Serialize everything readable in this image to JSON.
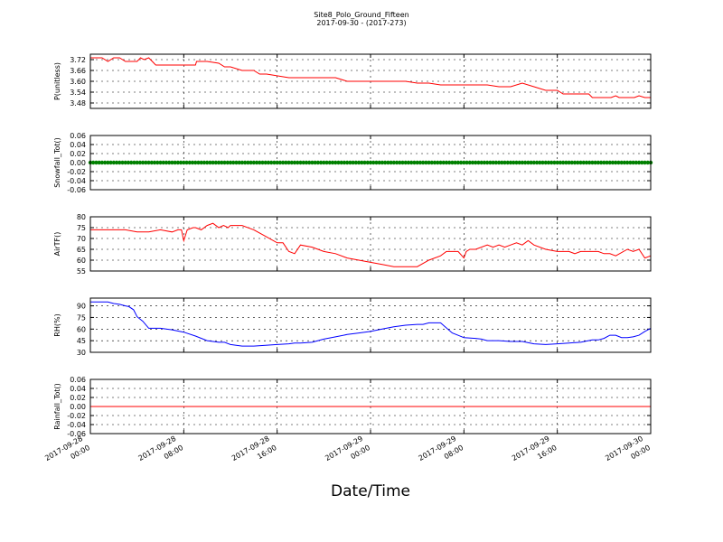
{
  "figure": {
    "title": "Site8_Polo_Ground_Fifteen",
    "subtitle": "2017-09-30 - (2017-273)",
    "xlabel": "Date/Time"
  },
  "chart_data": [
    {
      "type": "line",
      "ylabel": "P(unitless)",
      "color": "#ff0000",
      "yticks": [
        "3.72",
        "3.66",
        "3.60",
        "3.54",
        "3.48"
      ],
      "ytick_values": [
        3.72,
        3.66,
        3.6,
        3.54,
        3.48
      ],
      "ylim": [
        3.45,
        3.75
      ],
      "xlim": [
        0,
        48
      ],
      "grid": true,
      "x": [
        0,
        1,
        1.5,
        2,
        2.5,
        3,
        3.5,
        4,
        4.3,
        4.6,
        5,
        5.3,
        5.6,
        6,
        8,
        9,
        9.1,
        10,
        11,
        11.5,
        12,
        13,
        13.5,
        14,
        14.5,
        15,
        15.1,
        17,
        17.5,
        18,
        18.5,
        18.9,
        19,
        21,
        22,
        24,
        25,
        27,
        28,
        29,
        30,
        30.8,
        31,
        31.5,
        32,
        32.3,
        33,
        34,
        35,
        35.5,
        36,
        37,
        38,
        39,
        40,
        40.5,
        41,
        42,
        42.7,
        43,
        43.2,
        43.5,
        43.8,
        44,
        44.3,
        44.6,
        45,
        45.3,
        45.6,
        46,
        46.3,
        46.6,
        47,
        47.5,
        48
      ],
      "y": [
        3.73,
        3.73,
        3.71,
        3.73,
        3.73,
        3.71,
        3.71,
        3.71,
        3.73,
        3.72,
        3.73,
        3.71,
        3.69,
        3.69,
        3.69,
        3.69,
        3.71,
        3.71,
        3.7,
        3.68,
        3.68,
        3.66,
        3.66,
        3.66,
        3.64,
        3.64,
        3.64,
        3.62,
        3.62,
        3.62,
        3.62,
        3.62,
        3.62,
        3.62,
        3.6,
        3.6,
        3.6,
        3.6,
        3.59,
        3.59,
        3.58,
        3.58,
        3.58,
        3.58,
        3.58,
        3.58,
        3.58,
        3.58,
        3.57,
        3.57,
        3.57,
        3.59,
        3.57,
        3.55,
        3.55,
        3.53,
        3.53,
        3.53,
        3.53,
        3.51,
        3.51,
        3.51,
        3.51,
        3.51,
        3.51,
        3.51,
        3.52,
        3.51,
        3.51,
        3.51,
        3.51,
        3.51,
        3.52,
        3.51,
        3.51
      ]
    },
    {
      "type": "scatter",
      "ylabel": "Snowfall_Tot()",
      "color": "#008000",
      "yticks": [
        "0.06",
        "0.04",
        "0.02",
        "0.00",
        "-0.02",
        "-0.04",
        "-0.06"
      ],
      "ytick_values": [
        0.06,
        0.04,
        0.02,
        0.0,
        -0.02,
        -0.04,
        -0.06
      ],
      "ylim": [
        -0.06,
        0.06
      ],
      "xlim": [
        0,
        48
      ],
      "grid": true,
      "constant_value": 0.0,
      "x_start": 0,
      "x_end": 48,
      "marker_step": 0.25
    },
    {
      "type": "line",
      "ylabel": "AirTF()",
      "color": "#ff0000",
      "yticks": [
        "80",
        "75",
        "70",
        "65",
        "60",
        "55"
      ],
      "ytick_values": [
        80,
        75,
        70,
        65,
        60,
        55
      ],
      "ylim": [
        55,
        80
      ],
      "xlim": [
        0,
        48
      ],
      "grid": true,
      "x": [
        0,
        1,
        2,
        3,
        4,
        5,
        6,
        7,
        7.5,
        7.8,
        8,
        8.3,
        8.8,
        9,
        9.5,
        10,
        10.5,
        11,
        11.4,
        11.8,
        12,
        13,
        14,
        15,
        16,
        16.5,
        17,
        17.5,
        18,
        19,
        20,
        21,
        22,
        23,
        24,
        25,
        26,
        27,
        28,
        29,
        30,
        30.5,
        31,
        31.5,
        32,
        32.2,
        32.5,
        33,
        34,
        34.5,
        35,
        35.5,
        36,
        36.5,
        37,
        37.5,
        38,
        39,
        40,
        41,
        41.5,
        42,
        43,
        43.5,
        44,
        44.5,
        45,
        46,
        46.5,
        47,
        47.5,
        48
      ],
      "y": [
        74,
        74,
        74,
        74,
        73,
        73,
        74,
        73,
        74,
        74,
        69,
        74,
        75,
        75,
        74,
        76,
        77,
        75,
        76,
        75,
        76,
        76,
        74,
        71,
        68,
        68,
        64,
        63,
        67,
        66,
        64,
        63,
        61,
        60,
        59,
        58,
        57,
        57,
        57,
        60,
        62,
        64,
        64,
        64,
        61,
        64,
        65,
        65,
        67,
        66,
        67,
        66,
        67,
        68,
        67,
        69,
        67,
        65,
        64,
        64,
        63,
        64,
        64,
        64,
        63,
        63,
        62,
        65,
        64,
        65,
        61,
        62
      ]
    },
    {
      "type": "line",
      "ylabel": "RH(%)",
      "color": "#0000ff",
      "yticks": [
        "90",
        "75",
        "60",
        "45",
        "30"
      ],
      "ytick_values": [
        90,
        75,
        60,
        45,
        30
      ],
      "ylim": [
        30,
        100
      ],
      "xlim": [
        0,
        48
      ],
      "grid": true,
      "x": [
        0,
        1,
        1.5,
        2,
        2.5,
        3,
        3.3,
        3.7,
        4,
        4.5,
        5,
        6,
        7,
        8,
        9,
        10,
        11,
        11.5,
        12,
        13,
        14,
        15,
        16,
        17,
        17.5,
        18,
        19,
        20,
        21,
        22,
        23,
        24,
        25,
        26,
        27,
        28,
        28.5,
        29,
        30,
        31,
        32,
        33,
        33.5,
        34,
        35,
        36,
        37,
        38,
        39,
        40,
        41,
        42,
        43,
        43.5,
        44,
        44.5,
        45,
        45.5,
        46,
        46.5,
        47,
        47.5,
        48
      ],
      "y": [
        95,
        95,
        95,
        93,
        92,
        90,
        89,
        85,
        76,
        70,
        61,
        61,
        59,
        56,
        51,
        45,
        43,
        43,
        40,
        38,
        38,
        39,
        40,
        41,
        42,
        42,
        43,
        47,
        50,
        53,
        55,
        57,
        60,
        63,
        65,
        66,
        66,
        68,
        68,
        55,
        49,
        48,
        47,
        45,
        45,
        44,
        44,
        41,
        40,
        41,
        42,
        43,
        46,
        46,
        48,
        52,
        52,
        49,
        49,
        50,
        52,
        57,
        61
      ]
    },
    {
      "type": "line",
      "ylabel": "Rainfall_Tot()",
      "color": "#ff0000",
      "yticks": [
        "0.06",
        "0.04",
        "0.02",
        "0.00",
        "-0.02",
        "-0.04",
        "-0.06"
      ],
      "ytick_values": [
        0.06,
        0.04,
        0.02,
        0.0,
        -0.02,
        -0.04,
        -0.06
      ],
      "ylim": [
        -0.06,
        0.06
      ],
      "xlim": [
        0,
        48
      ],
      "grid": true,
      "x": [
        0,
        48
      ],
      "y": [
        0,
        0
      ]
    }
  ],
  "xaxis": {
    "xlim": [
      0,
      48
    ],
    "ticks": [
      {
        "x": 0,
        "line1": "2017-09-28",
        "line2": "00:00"
      },
      {
        "x": 8,
        "line1": "2017-09-28",
        "line2": "08:00"
      },
      {
        "x": 16,
        "line1": "2017-09-28",
        "line2": "16:00"
      },
      {
        "x": 24,
        "line1": "2017-09-29",
        "line2": "00:00"
      },
      {
        "x": 32,
        "line1": "2017-09-29",
        "line2": "08:00"
      },
      {
        "x": 40,
        "line1": "2017-09-29",
        "line2": "16:00"
      },
      {
        "x": 48,
        "line1": "2017-09-30",
        "line2": "00:00"
      }
    ]
  }
}
